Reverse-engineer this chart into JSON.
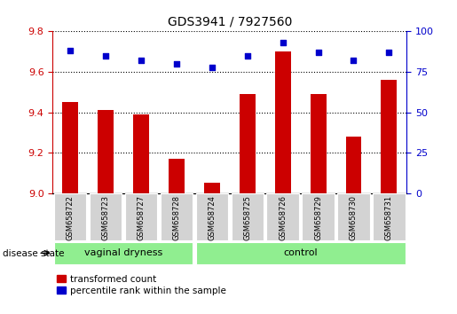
{
  "title": "GDS3941 / 7927560",
  "samples": [
    "GSM658722",
    "GSM658723",
    "GSM658727",
    "GSM658728",
    "GSM658724",
    "GSM658725",
    "GSM658726",
    "GSM658729",
    "GSM658730",
    "GSM658731"
  ],
  "bar_values": [
    9.45,
    9.41,
    9.39,
    9.17,
    9.05,
    9.49,
    9.7,
    9.49,
    9.28,
    9.56
  ],
  "dot_values": [
    88,
    85,
    82,
    80,
    78,
    85,
    93,
    87,
    82,
    87
  ],
  "bar_color": "#cc0000",
  "dot_color": "#0000cc",
  "ylim_left": [
    9.0,
    9.8
  ],
  "ylim_right": [
    0,
    100
  ],
  "yticks_left": [
    9.0,
    9.2,
    9.4,
    9.6,
    9.8
  ],
  "yticks_right": [
    0,
    25,
    50,
    75,
    100
  ],
  "group1_label": "vaginal dryness",
  "group2_label": "control",
  "group1_count": 4,
  "group2_count": 6,
  "legend_bar_label": "transformed count",
  "legend_dot_label": "percentile rank within the sample",
  "disease_state_label": "disease state",
  "bar_color_axis": "#cc0000",
  "dot_color_axis": "#0000cc",
  "bg_color": "#ffffff",
  "group_bg": "#90ee90",
  "tick_label_bg": "#d3d3d3"
}
